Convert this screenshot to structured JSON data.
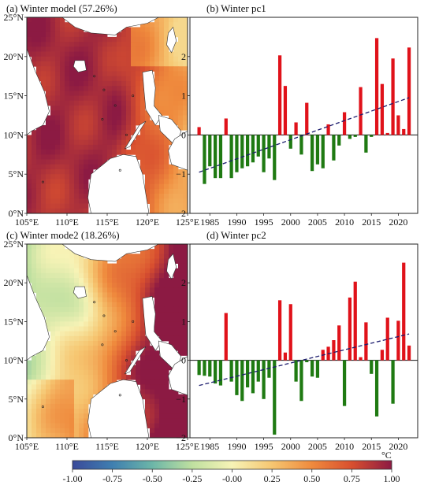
{
  "maps": [
    {
      "title": "(a) Winter model (57.26%)",
      "lat_ticks": [
        "0°N",
        "5°N",
        "10°N",
        "15°N",
        "20°N",
        "25°N"
      ],
      "lon_ticks": [
        "105°E",
        "110°E",
        "115°E",
        "120°E",
        "125°E"
      ],
      "pattern": "mode1",
      "colors_note": ""
    },
    {
      "title": "(c) Winter mode2 (18.26%)",
      "lat_ticks": [
        "0°N",
        "5°N",
        "10°N",
        "15°N",
        "20°N",
        "25°N"
      ],
      "lon_ticks": [
        "105°E",
        "110°E",
        "115°E",
        "120°E",
        "125°E"
      ],
      "pattern": "mode2",
      "colors_note": ""
    }
  ],
  "colorbar": {
    "ticks": [
      "-1.00",
      "-0.75",
      "-0.50",
      "-0.25",
      "-0.00",
      "0.25",
      "0.50",
      "0.75",
      "1.00"
    ],
    "unit": "°C",
    "range": [
      -1,
      1
    ],
    "stops": [
      "#3a4a9a",
      "#3f7fb0",
      "#6cb6a8",
      "#bfe0a0",
      "#f7f3b6",
      "#f6c671",
      "#ef8a3d",
      "#d84f2f",
      "#8c1a43"
    ]
  },
  "chart_data": [
    {
      "type": "bar",
      "title": "(b) Winter pc1",
      "xlabel": "",
      "ylabel": "",
      "x": [
        1983,
        1984,
        1985,
        1986,
        1987,
        1988,
        1989,
        1990,
        1991,
        1992,
        1993,
        1994,
        1995,
        1996,
        1997,
        1998,
        1999,
        2000,
        2001,
        2002,
        2003,
        2004,
        2005,
        2006,
        2007,
        2008,
        2009,
        2010,
        2011,
        2012,
        2013,
        2014,
        2015,
        2016,
        2017,
        2018,
        2019,
        2020,
        2021,
        2022
      ],
      "values": [
        0.2,
        -1.25,
        -0.8,
        -1.1,
        -1.1,
        0.42,
        -1.1,
        -0.95,
        -0.85,
        -0.8,
        -0.7,
        -0.55,
        -0.95,
        -0.6,
        -1.15,
        2.03,
        1.25,
        -0.35,
        0.32,
        -0.5,
        0.82,
        -0.92,
        -0.75,
        -0.85,
        0.27,
        -0.65,
        -0.27,
        0.58,
        -0.1,
        -0.05,
        1.22,
        -0.45,
        -0.05,
        2.47,
        1.3,
        0.05,
        1.95,
        0.5,
        0.15,
        2.23
      ],
      "trend": [
        [
          1983,
          -0.95
        ],
        [
          2022,
          0.95
        ]
      ],
      "xticks": [
        1985,
        1990,
        1995,
        2000,
        2005,
        2010,
        2015,
        2020
      ],
      "ylim": [
        -2,
        3
      ],
      "yticks": [
        -2,
        -1,
        0,
        1,
        2,
        3
      ],
      "pos_color": "#e0121a",
      "neg_color": "#1f7a12",
      "trend_color": "#1c1c6e"
    },
    {
      "type": "bar",
      "title": "(d) Winter pc2",
      "xlabel": "",
      "ylabel": "",
      "x": [
        1983,
        1984,
        1985,
        1986,
        1987,
        1988,
        1989,
        1990,
        1991,
        1992,
        1993,
        1994,
        1995,
        1996,
        1997,
        1998,
        1999,
        2000,
        2001,
        2002,
        2003,
        2004,
        2005,
        2006,
        2007,
        2008,
        2009,
        2010,
        2011,
        2012,
        2013,
        2014,
        2015,
        2016,
        2017,
        2018,
        2019,
        2020,
        2021,
        2022
      ],
      "values": [
        -0.38,
        -0.4,
        -0.42,
        -0.6,
        -0.65,
        1.22,
        -0.55,
        -0.9,
        -1.05,
        -0.7,
        -0.85,
        -0.55,
        -1.0,
        -0.45,
        -1.92,
        1.55,
        0.2,
        1.45,
        -0.55,
        -1.05,
        -0.05,
        -0.42,
        -0.45,
        0.27,
        0.35,
        0.52,
        0.9,
        -1.18,
        1.62,
        2.03,
        0.08,
        0.98,
        -0.35,
        -1.45,
        0.27,
        1.1,
        -1.12,
        1.02,
        2.52,
        0.38
      ],
      "trend": [
        [
          1983,
          -0.65
        ],
        [
          2022,
          0.68
        ]
      ],
      "xticks": [
        1985,
        1990,
        1995,
        2000,
        2005,
        2010,
        2015,
        2020
      ],
      "ylim": [
        -2,
        3
      ],
      "yticks": [
        -2,
        -1,
        0,
        1,
        2,
        3
      ],
      "pos_color": "#e0121a",
      "neg_color": "#1f7a12",
      "trend_color": "#1c1c6e"
    }
  ]
}
